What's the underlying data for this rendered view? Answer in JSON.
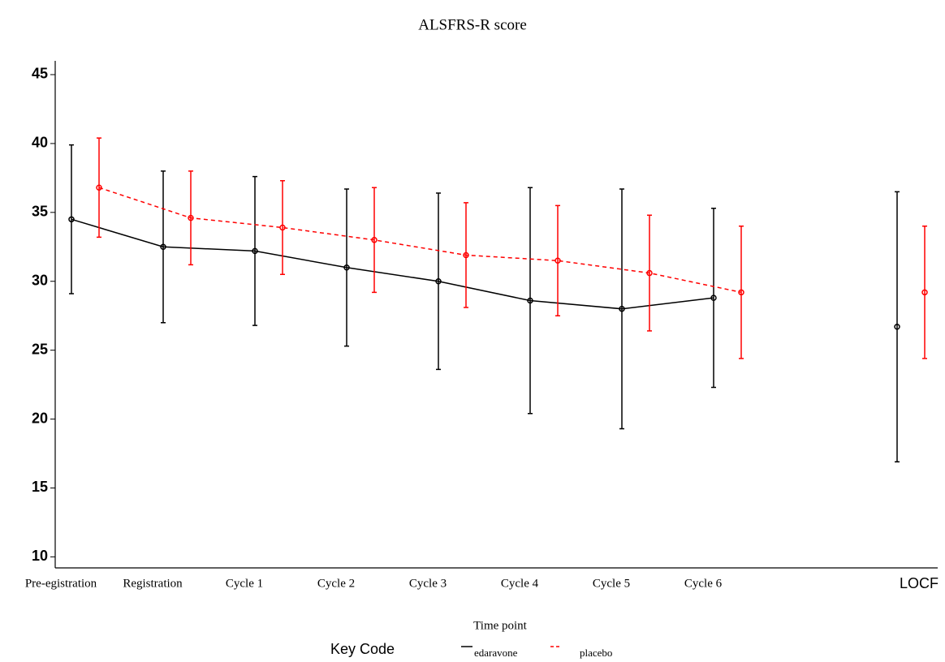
{
  "chart_data": {
    "type": "line",
    "title": "ALSFRS-R score",
    "xlabel": "Time point",
    "categories": [
      "Pre-egistration",
      "Registration",
      "Cycle 1",
      "Cycle 2",
      "Cycle 3",
      "Cycle 4",
      "Cycle 5",
      "Cycle 6",
      null,
      "LOCF"
    ],
    "series": [
      {
        "name": "edaravone",
        "color": "#000000",
        "dash": "solid",
        "values": [
          34.5,
          32.5,
          32.2,
          31.0,
          30.0,
          28.6,
          28.0,
          28.8,
          null,
          26.7
        ],
        "errors": [
          5.4,
          5.5,
          5.4,
          5.7,
          6.4,
          8.2,
          8.7,
          6.5,
          null,
          9.8
        ]
      },
      {
        "name": "placebo",
        "color": "#ff0000",
        "dash": "dashed",
        "values": [
          36.8,
          34.6,
          33.9,
          33.0,
          31.9,
          31.5,
          30.6,
          29.2,
          null,
          29.2
        ],
        "errors": [
          3.6,
          3.4,
          3.4,
          3.8,
          3.8,
          4.0,
          4.2,
          4.8,
          null,
          4.8
        ]
      }
    ],
    "ylim": [
      9.2,
      46
    ],
    "yticks": [
      10,
      15,
      20,
      25,
      30,
      35,
      40,
      45
    ],
    "legend_title": "Key Code",
    "legend": "bottom",
    "grid": false
  }
}
